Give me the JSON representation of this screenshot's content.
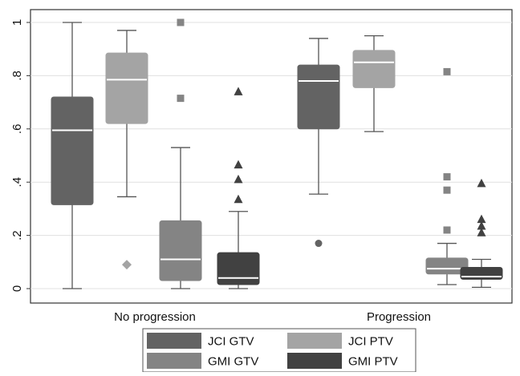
{
  "chart_data": {
    "type": "box",
    "title": "",
    "xlabel": "",
    "ylabel": "",
    "ylim": [
      -0.05,
      1.05
    ],
    "y_ticks": [
      {
        "value": 0,
        "label": "0"
      },
      {
        "value": 0.2,
        "label": ".2"
      },
      {
        "value": 0.4,
        "label": ".4"
      },
      {
        "value": 0.6,
        "label": ".6"
      },
      {
        "value": 0.8,
        "label": ".8"
      },
      {
        "value": 1,
        "label": "1"
      }
    ],
    "grid": true,
    "legend_position": "bottom",
    "categories": [
      "No progression",
      "Progression"
    ],
    "series": [
      {
        "name": "JCI GTV",
        "color": "#636363",
        "marker": "circle",
        "boxes": [
          {
            "min": 0.0,
            "q1": 0.315,
            "median": 0.595,
            "q3": 0.72,
            "max": 1.0,
            "outliers": []
          },
          {
            "min": 0.355,
            "q1": 0.6,
            "median": 0.78,
            "q3": 0.84,
            "max": 0.94,
            "outliers": [
              0.17
            ]
          }
        ]
      },
      {
        "name": "JCI PTV",
        "color": "#a4a4a4",
        "marker": "diamond",
        "boxes": [
          {
            "min": 0.345,
            "q1": 0.62,
            "median": 0.785,
            "q3": 0.885,
            "max": 0.97,
            "outliers": [
              0.09
            ]
          },
          {
            "min": 0.59,
            "q1": 0.755,
            "median": 0.85,
            "q3": 0.895,
            "max": 0.95,
            "outliers": []
          }
        ]
      },
      {
        "name": "GMI GTV",
        "color": "#848484",
        "marker": "square",
        "boxes": [
          {
            "min": 0.0,
            "q1": 0.03,
            "median": 0.11,
            "q3": 0.255,
            "max": 0.53,
            "outliers": [
              1.0,
              0.715
            ]
          },
          {
            "min": 0.015,
            "q1": 0.055,
            "median": 0.075,
            "q3": 0.115,
            "max": 0.17,
            "outliers": [
              0.815,
              0.42,
              0.37,
              0.22
            ]
          }
        ]
      },
      {
        "name": "GMI PTV",
        "color": "#414141",
        "marker": "triangle",
        "boxes": [
          {
            "min": 0.0,
            "q1": 0.015,
            "median": 0.04,
            "q3": 0.135,
            "max": 0.29,
            "outliers": [
              0.74,
              0.465,
              0.41,
              0.335
            ]
          },
          {
            "min": 0.005,
            "q1": 0.035,
            "median": 0.045,
            "q3": 0.08,
            "max": 0.11,
            "outliers": [
              0.395,
              0.26,
              0.235,
              0.21
            ]
          }
        ]
      }
    ]
  }
}
